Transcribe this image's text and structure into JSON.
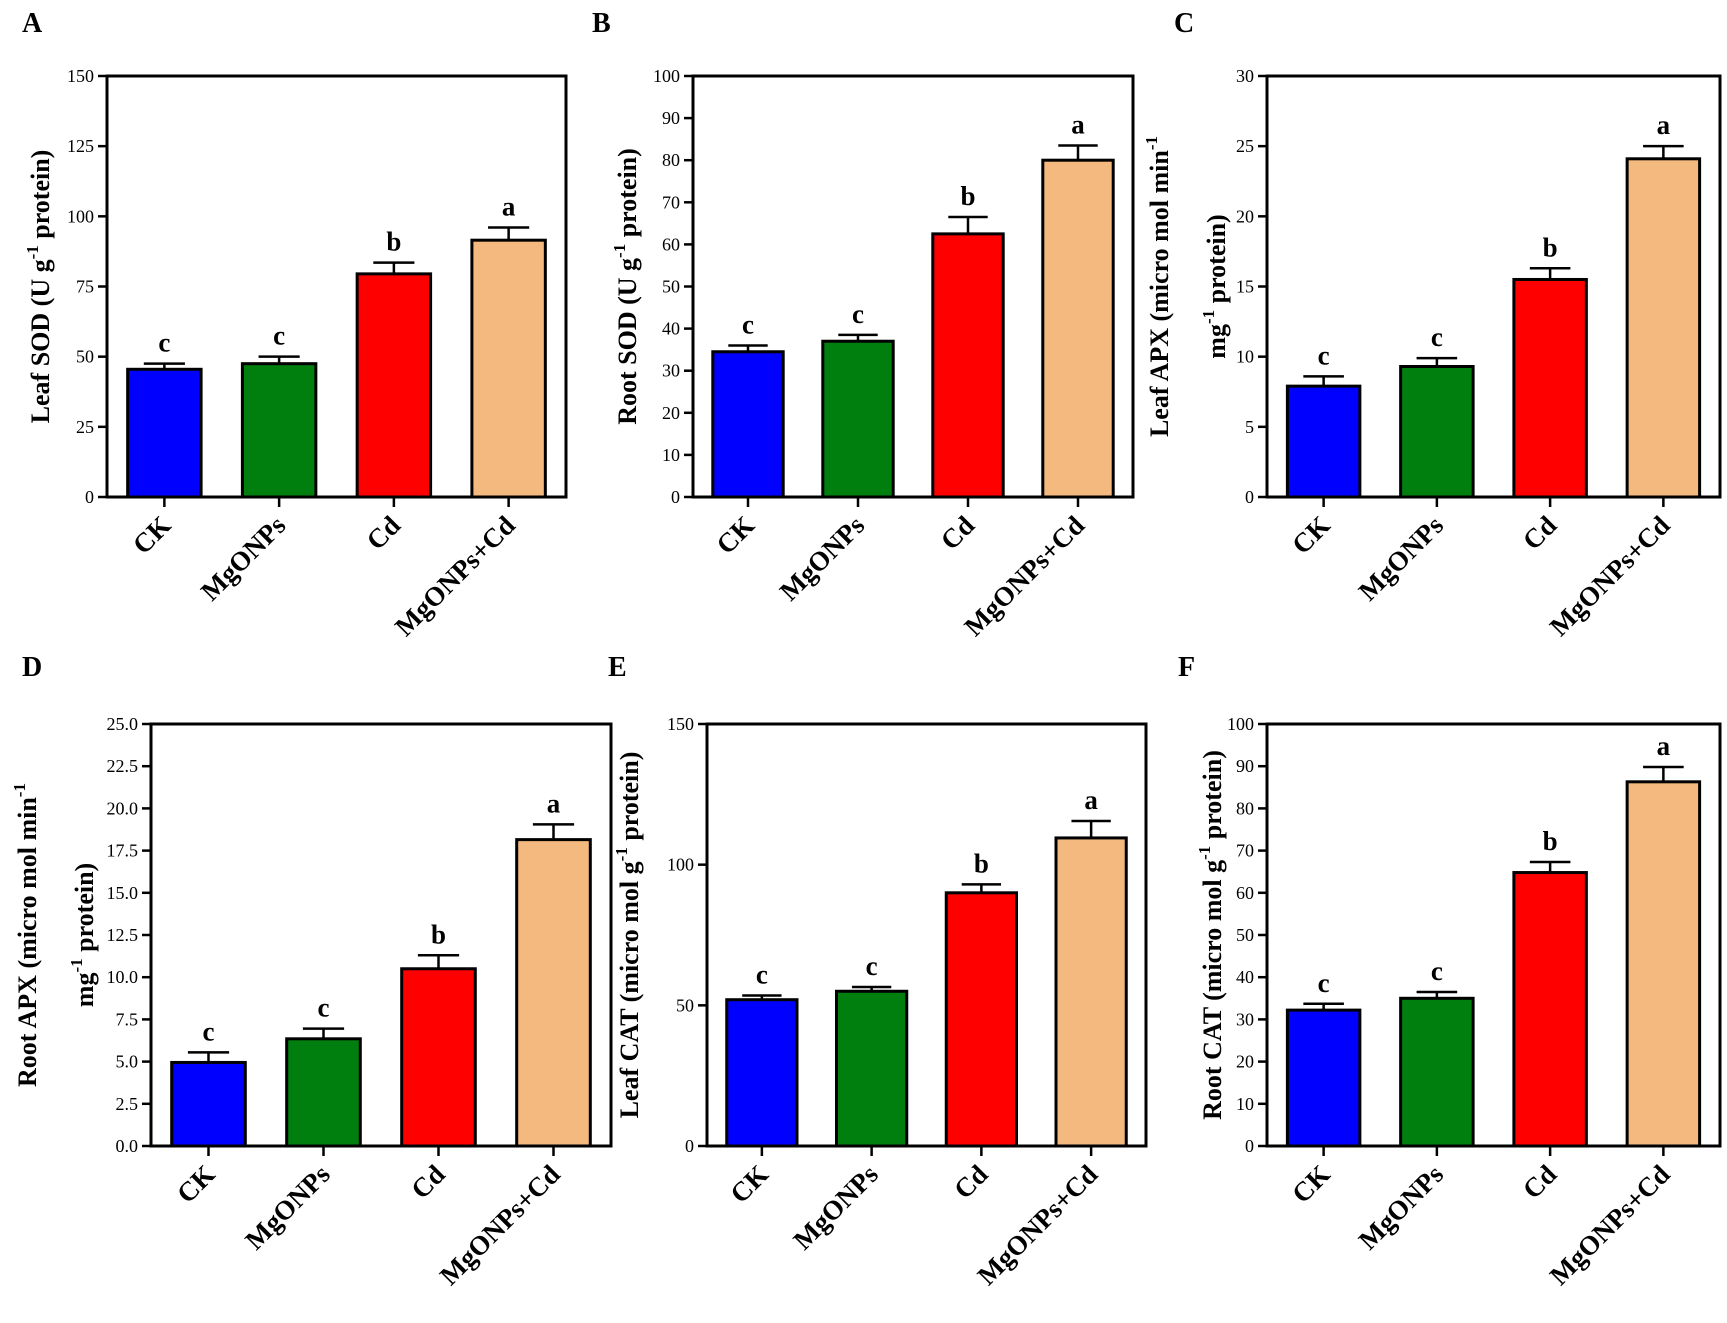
{
  "figure": {
    "panel_count": 6
  },
  "chart_data": [
    {
      "panel": "A",
      "type": "bar",
      "categories": [
        "CK",
        "MgONPs",
        "Cd",
        "MgONPs+Cd"
      ],
      "values": [
        45.5,
        47.5,
        79.5,
        91.5
      ],
      "errors": [
        2,
        2.5,
        4,
        4.5
      ],
      "letters": [
        "c",
        "c",
        "b",
        "a"
      ],
      "ylabel": "Leaf SOD (U g",
      "ylabel_sup": "-1",
      "ylabel_after": " protein)",
      "ylabel2": "",
      "ylim": [
        0,
        150
      ],
      "yticks": [
        "0",
        "25",
        "50",
        "75",
        "100",
        "125",
        "150"
      ],
      "colors": [
        "#0000ff",
        "#007f0e",
        "#ff0000",
        "#f4b97f"
      ]
    },
    {
      "panel": "B",
      "type": "bar",
      "categories": [
        "CK",
        "MgONPs",
        "Cd",
        "MgONPs+Cd"
      ],
      "values": [
        34.5,
        37,
        62.5,
        80
      ],
      "errors": [
        1.5,
        1.5,
        4,
        3.5
      ],
      "letters": [
        "c",
        "c",
        "b",
        "a"
      ],
      "ylabel": "Root SOD (U g",
      "ylabel_sup": "-1",
      "ylabel_after": " protein)",
      "ylabel2": "",
      "ylim": [
        0,
        100
      ],
      "yticks": [
        "0",
        "10",
        "20",
        "30",
        "40",
        "50",
        "60",
        "70",
        "80",
        "90",
        "100"
      ],
      "colors": [
        "#0000ff",
        "#007f0e",
        "#ff0000",
        "#f4b97f"
      ]
    },
    {
      "panel": "C",
      "type": "bar",
      "categories": [
        "CK",
        "MgONPs",
        "Cd",
        "MgONPs+Cd"
      ],
      "values": [
        7.9,
        9.3,
        15.5,
        24.1
      ],
      "errors": [
        0.7,
        0.6,
        0.8,
        0.9
      ],
      "letters": [
        "c",
        "c",
        "b",
        "a"
      ],
      "ylabel": "Leaf APX (micro mol min",
      "ylabel_sup": "-1",
      "ylabel_after": "",
      "ylabel2": "mg",
      "ylabel2_sup": "-1",
      "ylabel2_after": " protein)",
      "ylim": [
        0,
        30
      ],
      "yticks": [
        "0",
        "5",
        "10",
        "15",
        "20",
        "25",
        "30"
      ],
      "colors": [
        "#0000ff",
        "#007f0e",
        "#ff0000",
        "#f4b97f"
      ]
    },
    {
      "panel": "D",
      "type": "bar",
      "categories": [
        "CK",
        "MgONPs",
        "Cd",
        "MgONPs+Cd"
      ],
      "values": [
        4.95,
        6.35,
        10.5,
        18.15
      ],
      "errors": [
        0.6,
        0.6,
        0.8,
        0.9
      ],
      "letters": [
        "c",
        "c",
        "b",
        "a"
      ],
      "ylabel": "Root APX (micro mol min",
      "ylabel_sup": "-1",
      "ylabel_after": "",
      "ylabel2": "mg",
      "ylabel2_sup": "-1",
      "ylabel2_after": " protein)",
      "ylim": [
        0,
        25
      ],
      "yticks": [
        "0.0",
        "2.5",
        "5.0",
        "7.5",
        "10.0",
        "12.5",
        "15.0",
        "17.5",
        "20.0",
        "22.5",
        "25.0"
      ],
      "colors": [
        "#0000ff",
        "#007f0e",
        "#ff0000",
        "#f4b97f"
      ]
    },
    {
      "panel": "E",
      "type": "bar",
      "categories": [
        "CK",
        "MgONPs",
        "Cd",
        "MgONPs+Cd"
      ],
      "values": [
        52,
        55,
        90,
        109.5
      ],
      "errors": [
        1.5,
        1.5,
        3,
        6
      ],
      "letters": [
        "c",
        "c",
        "b",
        "a"
      ],
      "ylabel": "Leaf CAT (micro mol g",
      "ylabel_sup": "-1",
      "ylabel_after": " protein)",
      "ylabel2": "",
      "ylim": [
        0,
        150
      ],
      "yticks": [
        "0",
        "50",
        "100",
        "150"
      ],
      "colors": [
        "#0000ff",
        "#007f0e",
        "#ff0000",
        "#f4b97f"
      ]
    },
    {
      "panel": "F",
      "type": "bar",
      "categories": [
        "CK",
        "MgONPs",
        "Cd",
        "MgONPs+Cd"
      ],
      "values": [
        32.2,
        35,
        64.8,
        86.3
      ],
      "errors": [
        1.5,
        1.5,
        2.5,
        3.5
      ],
      "letters": [
        "c",
        "c",
        "b",
        "a"
      ],
      "ylabel": "Root CAT (micro mol g",
      "ylabel_sup": "-1",
      "ylabel_after": " protein)",
      "ylabel2": "",
      "ylim": [
        0,
        100
      ],
      "yticks": [
        "0",
        "10",
        "20",
        "30",
        "40",
        "50",
        "60",
        "70",
        "80",
        "90",
        "100"
      ],
      "colors": [
        "#0000ff",
        "#007f0e",
        "#ff0000",
        "#f4b97f"
      ]
    }
  ]
}
